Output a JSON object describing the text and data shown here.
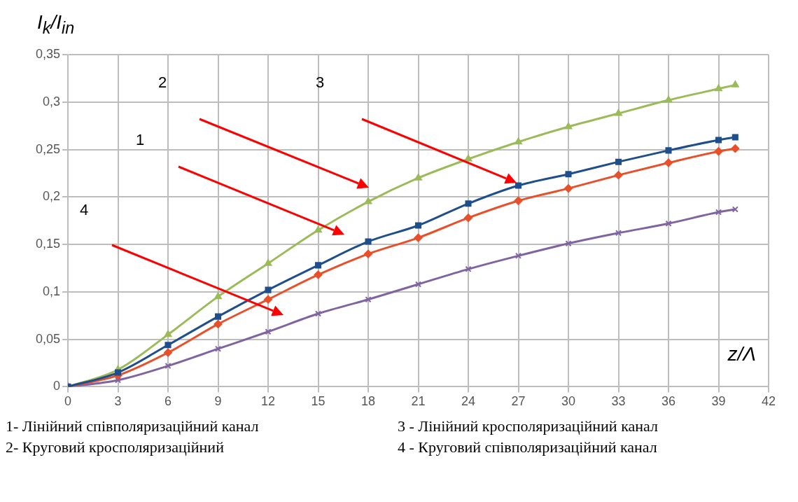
{
  "chart_data": {
    "type": "line",
    "ylabel": "I$_{k}$/I$_{in}$",
    "xlabel": "z/Λ",
    "x": [
      0,
      3,
      6,
      9,
      12,
      15,
      18,
      21,
      24,
      27,
      30,
      33,
      36,
      39,
      40
    ],
    "series": [
      {
        "color": "#1f4e8c",
        "marker": "square",
        "values": [
          0,
          0.015,
          0.044,
          0.074,
          0.102,
          0.128,
          0.153,
          0.17,
          0.193,
          0.212,
          0.224,
          0.237,
          0.249,
          0.26,
          0.263
        ]
      },
      {
        "color": "#9bbb59",
        "marker": "triangle",
        "values": [
          0,
          0.018,
          0.055,
          0.095,
          0.13,
          0.165,
          0.195,
          0.22,
          0.24,
          0.258,
          0.274,
          0.288,
          0.302,
          0.314,
          0.318
        ]
      },
      {
        "color": "#e8502a",
        "marker": "diamond",
        "values": [
          0,
          0.012,
          0.036,
          0.066,
          0.092,
          0.118,
          0.14,
          0.157,
          0.178,
          0.196,
          0.209,
          0.223,
          0.236,
          0.248,
          0.251
        ]
      },
      {
        "color": "#8064a2",
        "marker": "cross",
        "values": [
          0,
          0.007,
          0.022,
          0.04,
          0.058,
          0.077,
          0.092,
          0.108,
          0.124,
          0.138,
          0.151,
          0.162,
          0.172,
          0.184,
          0.187
        ]
      }
    ],
    "xlim": [
      0,
      42
    ],
    "xticks": [
      0,
      3,
      6,
      9,
      12,
      15,
      18,
      21,
      24,
      27,
      30,
      33,
      36,
      39,
      42
    ],
    "ylim": [
      0,
      0.35
    ],
    "yticks": [
      0,
      {
        "value": 0.05,
        "label": "0,05"
      },
      {
        "value": 0.1,
        "label": "0,1"
      },
      {
        "value": 0.15,
        "label": "0,15"
      },
      {
        "value": 0.2,
        "label": "0,2"
      },
      {
        "value": 0.25,
        "label": "0,25"
      },
      {
        "value": 0.3,
        "label": "0,3"
      },
      {
        "value": 0.35,
        "label": "0,35"
      }
    ],
    "grid": true,
    "legend": false,
    "annotations": [
      "1",
      "2",
      "3",
      "4",
      "1- Лінійний співполяризаційний канал",
      "3 - Лінійний кросполяризаційний канал",
      "2- Круговий кросполяризаційний",
      "4 - Круговий співполяризаційний канал"
    ]
  }
}
